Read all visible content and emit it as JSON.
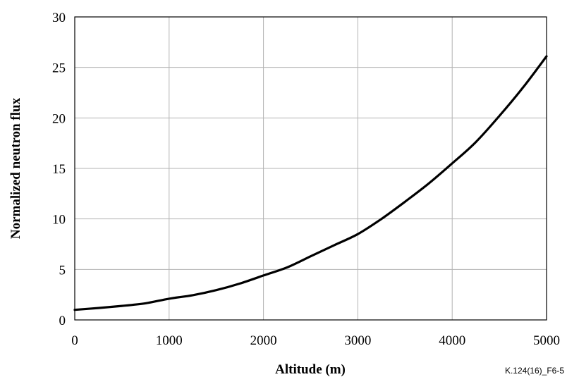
{
  "chart_data": {
    "type": "line",
    "title": "",
    "xlabel": "Altitude (m)",
    "ylabel": "Normalized neutron flux",
    "xlim": [
      0,
      5000
    ],
    "ylim": [
      0,
      30
    ],
    "xticks": [
      0,
      1000,
      2000,
      3000,
      4000,
      5000
    ],
    "yticks": [
      0,
      5,
      10,
      15,
      20,
      25,
      30
    ],
    "grid": true,
    "legend": "none",
    "series": [
      {
        "color": "#000000",
        "x": [
          0,
          250,
          500,
          750,
          1000,
          1250,
          1500,
          1750,
          2000,
          2250,
          2500,
          2750,
          3000,
          3250,
          3500,
          3750,
          4000,
          4250,
          4500,
          4750,
          5000
        ],
        "y": [
          1.0,
          1.18,
          1.39,
          1.65,
          2.1,
          2.45,
          2.95,
          3.6,
          4.4,
          5.2,
          6.3,
          7.4,
          8.5,
          10.0,
          11.7,
          13.5,
          15.5,
          17.6,
          20.2,
          23.0,
          26.1
        ]
      }
    ]
  },
  "figure_id": "K.124(16)_F6-5"
}
